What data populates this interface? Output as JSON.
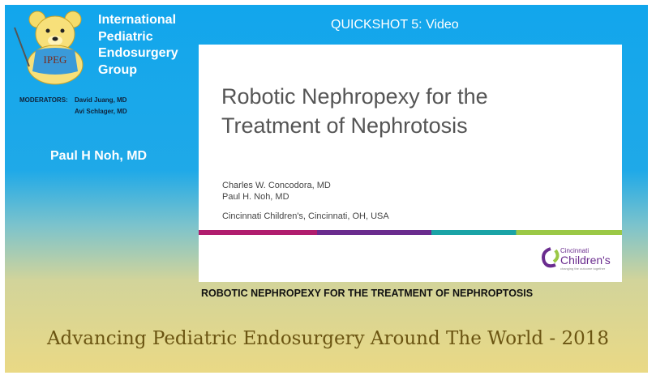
{
  "header": {
    "logo_text": "IPEG",
    "org_lines": [
      "International",
      "Pediatric",
      "Endosurgery",
      "Group"
    ],
    "moderators_label": "MODERATORS:",
    "moderators": [
      "David Juang, MD",
      "Avi Schlager, MD"
    ],
    "presenter": "Paul H Noh, MD",
    "session": "QUICKSHOT 5: Video"
  },
  "slide": {
    "title_lines": [
      "Robotic Nephropexy for the",
      "Treatment of Nephrotosis"
    ],
    "authors": [
      "Charles W. Concodora, MD",
      "Paul H. Noh, MD"
    ],
    "affiliation": "Cincinnati Children's, Cincinnati, OH, USA",
    "logo_lines": [
      "Cincinnati",
      "Children's"
    ],
    "logo_tagline": "changing the outcome together"
  },
  "caption": "ROBOTIC NEPHROPEXY FOR THE TREATMENT OF NEPHROPTOSIS",
  "footer": "Advancing Pediatric Endosurgery Around The World - 2018"
}
